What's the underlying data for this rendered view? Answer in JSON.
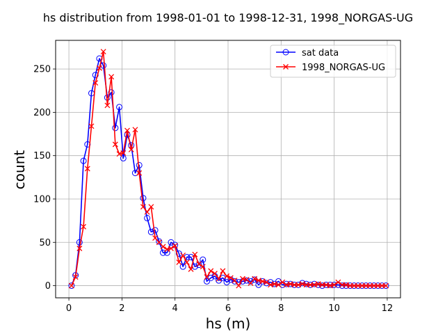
{
  "chart_data": {
    "type": "line",
    "title": "hs distribution from 1998-01-01 to 1998-12-31, 1998_NORGAS-UG",
    "xlabel": "hs (m)",
    "ylabel": "count",
    "xlim": [
      -0.5,
      12.5
    ],
    "ylim": [
      -14,
      283
    ],
    "xticks": [
      0,
      2,
      4,
      6,
      8,
      10,
      12
    ],
    "yticks": [
      0,
      50,
      100,
      150,
      200,
      250
    ],
    "grid": true,
    "legend_position": "top-right",
    "colors": {
      "sat": "#0000ff",
      "model": "#ff0000"
    },
    "x": [
      0.1,
      0.25,
      0.4,
      0.55,
      0.7,
      0.85,
      1.0,
      1.15,
      1.3,
      1.45,
      1.6,
      1.75,
      1.9,
      2.05,
      2.2,
      2.35,
      2.5,
      2.65,
      2.8,
      2.95,
      3.1,
      3.25,
      3.4,
      3.55,
      3.7,
      3.85,
      4.0,
      4.15,
      4.3,
      4.45,
      4.6,
      4.75,
      4.9,
      5.05,
      5.2,
      5.35,
      5.5,
      5.65,
      5.8,
      5.95,
      6.1,
      6.25,
      6.4,
      6.55,
      6.7,
      6.85,
      7.0,
      7.15,
      7.3,
      7.45,
      7.6,
      7.75,
      7.9,
      8.05,
      8.2,
      8.35,
      8.5,
      8.65,
      8.8,
      8.95,
      9.1,
      9.25,
      9.4,
      9.55,
      9.7,
      9.85,
      10.0,
      10.15,
      10.3,
      10.45,
      10.6,
      10.75,
      10.9,
      11.05,
      11.2,
      11.35,
      11.5,
      11.65,
      11.8,
      11.95
    ],
    "series": [
      {
        "name": "sat data",
        "marker": "circle",
        "color": "#0000ff",
        "values": [
          0,
          12,
          50,
          144,
          163,
          222,
          243,
          262,
          254,
          217,
          223,
          182,
          206,
          147,
          174,
          162,
          130,
          139,
          101,
          78,
          62,
          64,
          51,
          38,
          38,
          50,
          47,
          37,
          22,
          33,
          33,
          22,
          24,
          30,
          5,
          9,
          11,
          6,
          9,
          4,
          7,
          5,
          4,
          5,
          6,
          5,
          7,
          1,
          5,
          3,
          4,
          2,
          5,
          1,
          2,
          2,
          1,
          1,
          3,
          2,
          1,
          2,
          1,
          0,
          1,
          1,
          1,
          1,
          0,
          0,
          0,
          0,
          0,
          0,
          0,
          0,
          0,
          0,
          0,
          0
        ]
      },
      {
        "name": "1998_NORGAS-UG",
        "marker": "x",
        "color": "#ff0000",
        "values": [
          0,
          10,
          43,
          68,
          135,
          184,
          234,
          251,
          270,
          208,
          241,
          163,
          152,
          153,
          179,
          157,
          180,
          130,
          91,
          85,
          91,
          55,
          50,
          45,
          42,
          43,
          46,
          27,
          35,
          27,
          19,
          36,
          25,
          22,
          10,
          17,
          14,
          8,
          17,
          11,
          9,
          6,
          0,
          8,
          7,
          3,
          8,
          6,
          5,
          4,
          1,
          2,
          1,
          4,
          1,
          2,
          1,
          1,
          2,
          1,
          1,
          1,
          2,
          1,
          1,
          0,
          1,
          4,
          1,
          1,
          0,
          0,
          0,
          0,
          0,
          0,
          0,
          0,
          0,
          0
        ]
      }
    ]
  }
}
